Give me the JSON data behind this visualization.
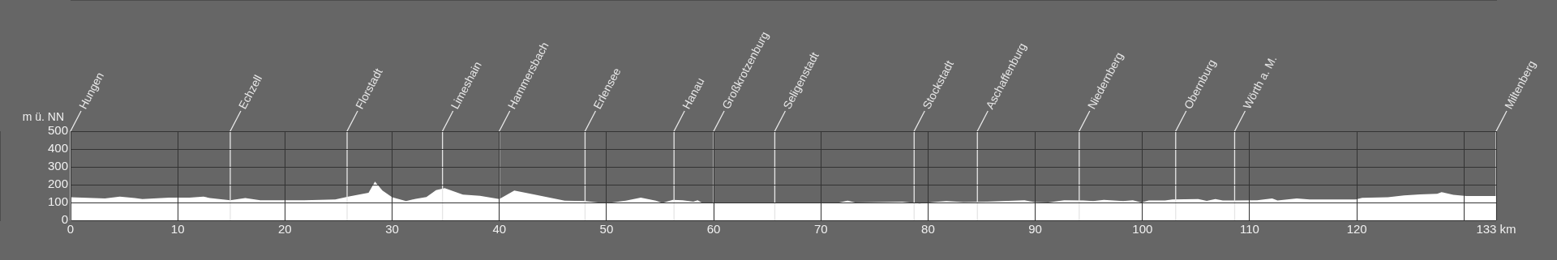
{
  "chart_data": {
    "type": "area",
    "ylabel": "m ü. NN",
    "x": [
      0,
      3.2,
      4.6,
      6,
      6.7,
      9.2,
      11.1,
      12.4,
      13,
      14.9,
      16.3,
      17.7,
      21.8,
      24.7,
      25.9,
      27.8,
      28.4,
      29.1,
      30,
      31.3,
      32.2,
      33.2,
      34.1,
      34.9,
      36.6,
      38.2,
      40,
      41.4,
      43.3,
      46.1,
      48,
      49.9,
      50.8,
      51.8,
      53.2,
      54.6,
      55.2,
      56.2,
      57.1,
      58.1,
      58.5,
      59,
      61.9,
      66.6,
      71.7,
      72.5,
      73.2,
      77.6,
      79.2,
      80.5,
      81.7,
      83.3,
      85.5,
      89,
      89.9,
      91.2,
      92.7,
      94.5,
      95.4,
      96.4,
      98.2,
      99.1,
      99.9,
      100.6,
      102.1,
      102.8,
      105.2,
      106,
      106.8,
      107.5,
      110.7,
      112.1,
      112.6,
      114.4,
      115.6,
      119.9,
      120.5,
      122.9,
      124.4,
      125.9,
      127.5,
      127.9,
      129,
      130.2,
      133
    ],
    "series": [
      {
        "color": "#ffffff",
        "values": [
          130,
          123,
          133,
          125,
          119,
          127,
          127,
          133,
          125,
          113,
          125,
          112,
          112,
          117,
          133,
          154,
          217,
          167,
          129,
          108,
          121,
          131,
          169,
          181,
          144,
          138,
          119,
          167,
          144,
          110,
          108,
          96,
          102,
          110,
          127,
          110,
          98,
          115,
          113,
          104,
          113,
          96,
          96,
          98,
          100,
          110,
          100,
          104,
          94,
          102,
          108,
          102,
          104,
          112,
          102,
          100,
          113,
          111,
          108,
          115,
          108,
          113,
          100,
          111,
          111,
          117,
          119,
          109,
          119,
          111,
          113,
          123,
          111,
          123,
          117,
          117,
          126,
          130,
          140,
          145,
          149,
          158,
          143,
          136,
          136
        ]
      }
    ],
    "xlim": [
      0,
      133
    ],
    "ylim": [
      0,
      500
    ],
    "xticks": [
      0,
      10,
      20,
      30,
      40,
      50,
      60,
      70,
      80,
      90,
      100,
      110,
      120,
      {
        "value": 130,
        "label": null
      },
      {
        "value": 133,
        "label": "133 km"
      }
    ],
    "yticks": [
      0,
      100,
      200,
      300,
      400,
      500
    ],
    "grid": true,
    "ref_lines": [
      {
        "axis": "x",
        "value": 0,
        "label": "Hungen",
        "color": "#e6e6e6"
      },
      {
        "axis": "x",
        "value": 14.9,
        "label": "Echzell",
        "color": "#e6e6e6"
      },
      {
        "axis": "x",
        "value": 25.8,
        "label": "Florstadt",
        "color": "#e6e6e6"
      },
      {
        "axis": "x",
        "value": 34.7,
        "label": "Limeshain",
        "color": "#e6e6e6"
      },
      {
        "axis": "x",
        "value": 40,
        "label": "Hammersbach",
        "color": "#e6e6e6"
      },
      {
        "axis": "x",
        "value": 48,
        "label": "Erlensee",
        "color": "#e6e6e6"
      },
      {
        "axis": "x",
        "value": 56.3,
        "label": "Hanau",
        "color": "#e6e6e6"
      },
      {
        "axis": "x",
        "value": 60,
        "label": "Großkrotzenburg",
        "color": "#e6e6e6"
      },
      {
        "axis": "x",
        "value": 65.7,
        "label": "Seligenstadt",
        "color": "#e6e6e6"
      },
      {
        "axis": "x",
        "value": 78.7,
        "label": "Stockstadt",
        "color": "#e6e6e6"
      },
      {
        "axis": "x",
        "value": 84.6,
        "label": "Aschaffenburg",
        "color": "#e6e6e6"
      },
      {
        "axis": "x",
        "value": 94.1,
        "label": "Niedernberg",
        "color": "#e6e6e6"
      },
      {
        "axis": "x",
        "value": 103.1,
        "label": "Obernburg",
        "color": "#e6e6e6"
      },
      {
        "axis": "x",
        "value": 108.6,
        "label": "Wörth a. M.",
        "color": "#e6e6e6"
      },
      {
        "axis": "x",
        "value": 133,
        "label": "Miltenberg",
        "color": "#e6e6e6"
      }
    ]
  }
}
